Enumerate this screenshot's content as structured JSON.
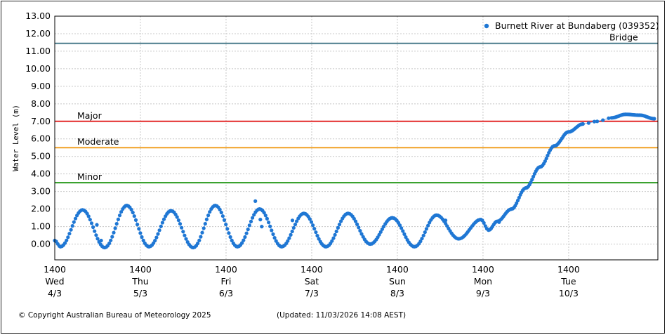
{
  "chart_data": {
    "type": "scatter",
    "ylabel": "Water Level (m)",
    "ylim": [
      -0.9,
      13.0
    ],
    "yticks": [
      "13.00",
      "12.00",
      "11.00",
      "10.00",
      "9.00",
      "8.00",
      "7.00",
      "6.00",
      "5.00",
      "4.00",
      "3.00",
      "2.00",
      "1.00",
      "0.00"
    ],
    "ytick_values": [
      13,
      12,
      11,
      10,
      9,
      8,
      7,
      6,
      5,
      4,
      3,
      2,
      1,
      0
    ],
    "xlim_hours": [
      0,
      169
    ],
    "xticks": [
      {
        "hour": 0,
        "time": "1400",
        "day": "Wed",
        "date": "4/3"
      },
      {
        "hour": 24,
        "time": "1400",
        "day": "Thu",
        "date": "5/3"
      },
      {
        "hour": 48,
        "time": "1400",
        "day": "Fri",
        "date": "6/3"
      },
      {
        "hour": 72,
        "time": "1400",
        "day": "Sat",
        "date": "7/3"
      },
      {
        "hour": 96,
        "time": "1400",
        "day": "Sun",
        "date": "8/3"
      },
      {
        "hour": 120,
        "time": "1400",
        "day": "Mon",
        "date": "9/3"
      },
      {
        "hour": 144,
        "time": "1400",
        "day": "Tue",
        "date": "10/3"
      }
    ],
    "grid": true,
    "thresholds": [
      {
        "label": "Bridge",
        "value": 11.45,
        "color": "#4a7c8c"
      },
      {
        "label": "Major",
        "value": 7.0,
        "color": "#e32a2a"
      },
      {
        "label": "Moderate",
        "value": 5.5,
        "color": "#f2a125"
      },
      {
        "label": "Minor",
        "value": 3.5,
        "color": "#2a9a1e"
      }
    ],
    "series": [
      {
        "name": "Burnett River at Bundaberg (039352)",
        "color": "#1f77d4",
        "tide_model": {
          "period_hours": 12.4,
          "start_level": 0.2
        },
        "tide_peaks": [
          {
            "hour": 7.8,
            "level": 1.95
          },
          {
            "hour": 20.2,
            "level": 2.2
          },
          {
            "hour": 32.6,
            "level": 1.9
          },
          {
            "hour": 45.0,
            "level": 2.2
          },
          {
            "hour": 57.4,
            "level": 2.0
          },
          {
            "hour": 69.8,
            "level": 1.75
          },
          {
            "hour": 82.2,
            "level": 1.75
          },
          {
            "hour": 94.6,
            "level": 1.5
          },
          {
            "hour": 107.0,
            "level": 1.65
          },
          {
            "hour": 119.4,
            "level": 1.4
          }
        ],
        "tide_troughs": [
          {
            "hour": 1.6,
            "level": -0.15
          },
          {
            "hour": 14.0,
            "level": -0.2
          },
          {
            "hour": 26.4,
            "level": -0.15
          },
          {
            "hour": 38.8,
            "level": -0.2
          },
          {
            "hour": 51.2,
            "level": -0.15
          },
          {
            "hour": 63.6,
            "level": -0.15
          },
          {
            "hour": 76.0,
            "level": -0.15
          },
          {
            "hour": 88.4,
            "level": 0.0
          },
          {
            "hour": 100.8,
            "level": -0.15
          },
          {
            "hour": 113.2,
            "level": 0.3
          },
          {
            "hour": 121.6,
            "level": 0.8
          }
        ],
        "rise_points": [
          {
            "hour": 124.0,
            "level": 1.3
          },
          {
            "hour": 128.0,
            "level": 2.0
          },
          {
            "hour": 132.0,
            "level": 3.2
          },
          {
            "hour": 136.0,
            "level": 4.4
          },
          {
            "hour": 140.0,
            "level": 5.6
          },
          {
            "hour": 144.0,
            "level": 6.4
          },
          {
            "hour": 148.0,
            "level": 6.85
          },
          {
            "hour": 152.0,
            "level": 7.0
          },
          {
            "hour": 156.0,
            "level": 7.2
          },
          {
            "hour": 160.0,
            "level": 7.4
          },
          {
            "hour": 164.0,
            "level": 7.35
          },
          {
            "hour": 168.0,
            "level": 7.15
          }
        ],
        "outliers": [
          {
            "hour": 11.8,
            "level": 1.1
          },
          {
            "hour": 13.0,
            "level": 0.2
          },
          {
            "hour": 56.2,
            "level": 2.45
          },
          {
            "hour": 57.6,
            "level": 1.4
          },
          {
            "hour": 58.0,
            "level": 1.0
          },
          {
            "hour": 66.6,
            "level": 1.35
          },
          {
            "hour": 109.5,
            "level": 1.35
          },
          {
            "hour": 124.5,
            "level": 1.25
          }
        ]
      }
    ]
  },
  "footer": {
    "copyright": "© Copyright Australian Bureau of Meteorology 2025",
    "updated": "(Updated: 11/03/2026 14:08 AEST)"
  }
}
